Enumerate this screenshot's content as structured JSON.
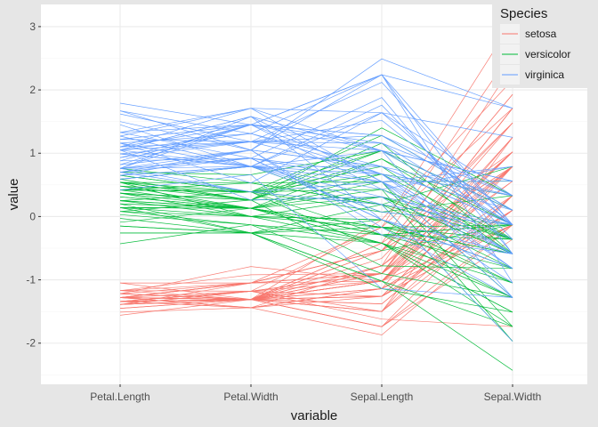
{
  "chart_data": {
    "type": "line",
    "subtype": "parallel-coordinates",
    "title": "",
    "xlabel": "variable",
    "ylabel": "value",
    "categories": [
      "Petal.Length",
      "Petal.Width",
      "Sepal.Length",
      "Sepal.Width"
    ],
    "ylim": [
      -2.65,
      3.35
    ],
    "yticks": [
      -2,
      -1,
      0,
      1,
      2,
      3
    ],
    "grid": true,
    "legend": {
      "title": "Species",
      "position": "top-right"
    },
    "series": [
      {
        "name": "setosa",
        "color": "#F8766D",
        "lines": [
          [
            -1.34,
            -1.31,
            -0.9,
            1.02
          ],
          [
            -1.34,
            -1.31,
            -1.14,
            -0.13
          ],
          [
            -1.39,
            -1.31,
            -1.38,
            0.33
          ],
          [
            -1.28,
            -1.31,
            -1.5,
            0.1
          ],
          [
            -1.34,
            -1.31,
            -1.02,
            1.25
          ],
          [
            -1.17,
            -1.05,
            -0.54,
            1.93
          ],
          [
            -1.34,
            -1.18,
            -1.5,
            0.79
          ],
          [
            -1.28,
            -1.31,
            -1.02,
            0.79
          ],
          [
            -1.34,
            -1.31,
            -1.74,
            -0.36
          ],
          [
            -1.28,
            -1.44,
            -1.14,
            0.1
          ],
          [
            -1.28,
            -1.31,
            -0.54,
            1.48
          ],
          [
            -1.22,
            -1.31,
            -1.26,
            0.79
          ],
          [
            -1.34,
            -1.44,
            -1.26,
            -0.13
          ],
          [
            -1.51,
            -1.44,
            -1.87,
            -0.13
          ],
          [
            -1.45,
            -1.31,
            -0.05,
            2.16
          ],
          [
            -1.28,
            -1.05,
            -0.17,
            3.08
          ],
          [
            -1.39,
            -1.05,
            -0.54,
            1.93
          ],
          [
            -1.34,
            -1.18,
            -0.9,
            1.02
          ],
          [
            -1.17,
            -1.18,
            -0.17,
            1.71
          ],
          [
            -1.28,
            -1.18,
            -0.9,
            1.71
          ],
          [
            -1.17,
            -1.31,
            -0.54,
            0.79
          ],
          [
            -1.28,
            -1.05,
            -0.9,
            1.48
          ],
          [
            -1.56,
            -1.31,
            -1.5,
            1.25
          ],
          [
            -1.17,
            -0.92,
            -0.9,
            0.56
          ],
          [
            -1.05,
            -1.31,
            -1.26,
            0.79
          ],
          [
            -1.22,
            -1.31,
            -1.02,
            -0.13
          ],
          [
            -1.22,
            -1.05,
            -1.02,
            0.79
          ],
          [
            -1.28,
            -1.31,
            -0.78,
            1.02
          ],
          [
            -1.34,
            -1.31,
            -0.78,
            0.79
          ],
          [
            -1.22,
            -1.31,
            -1.38,
            0.33
          ],
          [
            -1.22,
            -1.31,
            -1.26,
            0.1
          ],
          [
            -1.28,
            -1.05,
            -0.54,
            0.79
          ],
          [
            -1.28,
            -1.44,
            -0.78,
            2.39
          ],
          [
            -1.34,
            -1.31,
            -0.42,
            2.62
          ],
          [
            -1.28,
            -1.31,
            -1.14,
            0.1
          ],
          [
            -1.45,
            -1.31,
            -1.02,
            0.33
          ],
          [
            -1.39,
            -1.31,
            -0.42,
            1.02
          ],
          [
            -1.34,
            -1.44,
            -1.14,
            1.25
          ],
          [
            -1.39,
            -1.31,
            -1.74,
            -0.13
          ],
          [
            -1.28,
            -1.31,
            -0.9,
            0.79
          ],
          [
            -1.39,
            -1.18,
            -1.02,
            1.02
          ],
          [
            -1.39,
            -1.18,
            -1.62,
            -1.74
          ],
          [
            -1.39,
            -1.31,
            -1.74,
            0.33
          ],
          [
            -1.22,
            -0.79,
            -1.02,
            1.02
          ],
          [
            -1.05,
            -1.05,
            -0.9,
            1.71
          ],
          [
            -1.34,
            -1.18,
            -1.26,
            -0.13
          ],
          [
            -1.22,
            -1.31,
            -0.9,
            1.71
          ],
          [
            -1.34,
            -1.31,
            -1.5,
            0.33
          ],
          [
            -1.28,
            -1.31,
            -0.66,
            1.48
          ],
          [
            -1.34,
            -1.31,
            -1.02,
            0.56
          ]
        ]
      },
      {
        "name": "versicolor",
        "color": "#00BA38",
        "lines": [
          [
            0.54,
            0.26,
            1.4,
            0.33
          ],
          [
            0.42,
            0.39,
            0.67,
            0.33
          ],
          [
            0.65,
            0.39,
            1.28,
            0.1
          ],
          [
            0.14,
            0.13,
            -0.42,
            -1.74
          ],
          [
            0.48,
            0.39,
            0.79,
            -0.59
          ],
          [
            0.42,
            0.13,
            -0.17,
            -0.59
          ],
          [
            0.54,
            0.53,
            0.55,
            0.56
          ],
          [
            -0.26,
            -0.26,
            -1.14,
            -1.51
          ],
          [
            0.48,
            0.13,
            0.91,
            -0.36
          ],
          [
            0.08,
            0.26,
            -0.78,
            -0.82
          ],
          [
            -0.15,
            -0.26,
            -1.02,
            -2.43
          ],
          [
            0.25,
            0.39,
            0.07,
            -0.13
          ],
          [
            0.14,
            -0.26,
            0.19,
            -1.97
          ],
          [
            0.54,
            0.26,
            0.31,
            -0.36
          ],
          [
            -0.09,
            0.13,
            -0.29,
            -0.36
          ],
          [
            0.37,
            0.26,
            1.04,
            0.1
          ],
          [
            0.42,
            0.39,
            -0.29,
            -0.13
          ],
          [
            0.2,
            -0.26,
            -0.05,
            -0.82
          ],
          [
            0.42,
            0.39,
            0.43,
            -1.97
          ],
          [
            0.08,
            -0.13,
            -0.29,
            -1.28
          ],
          [
            0.59,
            0.79,
            0.07,
            0.33
          ],
          [
            0.14,
            0.13,
            0.31,
            -0.59
          ],
          [
            0.65,
            0.39,
            0.55,
            -1.28
          ],
          [
            0.54,
            0.0,
            0.31,
            -0.59
          ],
          [
            0.31,
            0.13,
            0.67,
            -0.36
          ],
          [
            0.37,
            0.26,
            0.91,
            -0.13
          ],
          [
            0.59,
            0.26,
            1.16,
            -0.59
          ],
          [
            0.7,
            0.66,
            1.04,
            -0.13
          ],
          [
            0.42,
            0.39,
            0.19,
            -0.36
          ],
          [
            -0.15,
            -0.26,
            -0.17,
            -1.05
          ],
          [
            0.03,
            -0.13,
            -0.42,
            -1.51
          ],
          [
            -0.03,
            -0.26,
            -0.42,
            -1.51
          ],
          [
            0.08,
            0.0,
            -0.05,
            -0.82
          ],
          [
            0.76,
            0.53,
            0.19,
            -0.82
          ],
          [
            0.42,
            0.39,
            -0.54,
            -0.13
          ],
          [
            0.42,
            0.53,
            0.19,
            0.79
          ],
          [
            0.54,
            0.39,
            1.04,
            0.1
          ],
          [
            0.37,
            0.13,
            0.55,
            -1.74
          ],
          [
            0.2,
            0.13,
            -0.29,
            -0.13
          ],
          [
            0.14,
            0.13,
            -0.42,
            -1.28
          ],
          [
            0.37,
            0.0,
            -0.42,
            -1.05
          ],
          [
            0.48,
            0.26,
            0.31,
            -0.13
          ],
          [
            0.14,
            0.0,
            -0.05,
            -1.05
          ],
          [
            -0.26,
            -0.26,
            -1.02,
            -1.74
          ],
          [
            0.25,
            0.13,
            -0.29,
            -0.82
          ],
          [
            0.25,
            0.0,
            -0.17,
            -0.13
          ],
          [
            0.25,
            0.13,
            -0.17,
            -0.36
          ],
          [
            0.31,
            0.13,
            0.43,
            -0.36
          ],
          [
            -0.43,
            -0.13,
            -0.9,
            -1.28
          ],
          [
            0.2,
            0.13,
            -0.17,
            -0.59
          ]
        ]
      },
      {
        "name": "virginica",
        "color": "#619CFF",
        "lines": [
          [
            1.27,
            1.71,
            0.55,
            0.56
          ],
          [
            0.76,
            0.92,
            -0.05,
            -0.82
          ],
          [
            1.22,
            1.18,
            1.52,
            -0.13
          ],
          [
            1.05,
            0.79,
            0.55,
            -0.36
          ],
          [
            1.16,
            1.31,
            0.79,
            -0.13
          ],
          [
            1.62,
            1.18,
            2.12,
            -0.13
          ],
          [
            0.42,
            0.66,
            -1.14,
            -1.28
          ],
          [
            1.45,
            0.79,
            1.76,
            -0.36
          ],
          [
            1.16,
            0.79,
            1.04,
            -1.28
          ],
          [
            1.33,
            1.71,
            1.64,
            1.25
          ],
          [
            0.76,
            1.05,
            0.79,
            0.33
          ],
          [
            0.88,
            0.92,
            0.67,
            -0.82
          ],
          [
            0.99,
            1.18,
            1.16,
            -0.13
          ],
          [
            0.7,
            1.05,
            -0.17,
            -1.28
          ],
          [
            0.76,
            1.58,
            -0.05,
            -0.59
          ],
          [
            0.88,
            1.45,
            0.67,
            0.33
          ],
          [
            0.99,
            0.79,
            0.79,
            -0.13
          ],
          [
            1.67,
            1.31,
            2.24,
            1.71
          ],
          [
            1.79,
            1.45,
            2.24,
            -1.05
          ],
          [
            0.7,
            0.39,
            0.19,
            -1.97
          ],
          [
            1.1,
            1.45,
            1.28,
            0.33
          ],
          [
            0.65,
            1.05,
            -0.29,
            -0.59
          ],
          [
            1.67,
            1.05,
            2.24,
            -0.59
          ],
          [
            0.65,
            0.79,
            0.55,
            -0.82
          ],
          [
            1.1,
            1.18,
            1.04,
            0.56
          ],
          [
            1.27,
            0.79,
            1.64,
            0.33
          ],
          [
            0.59,
            0.79,
            0.43,
            -0.59
          ],
          [
            0.65,
            0.79,
            0.31,
            -0.13
          ],
          [
            1.05,
            1.18,
            0.67,
            -0.59
          ],
          [
            1.16,
            0.53,
            1.64,
            -0.13
          ],
          [
            1.33,
            0.92,
            1.88,
            -0.59
          ],
          [
            1.5,
            1.05,
            2.49,
            1.71
          ],
          [
            1.05,
            1.31,
            0.67,
            -0.59
          ],
          [
            0.76,
            0.39,
            0.55,
            -0.59
          ],
          [
            1.05,
            0.26,
            0.31,
            -1.05
          ],
          [
            1.33,
            1.45,
            2.24,
            -0.13
          ],
          [
            1.05,
            1.58,
            0.55,
            0.79
          ],
          [
            0.99,
            0.79,
            0.67,
            0.1
          ],
          [
            0.59,
            0.79,
            0.19,
            -0.13
          ],
          [
            0.93,
            1.18,
            1.28,
            0.1
          ],
          [
            1.05,
            1.58,
            1.04,
            0.1
          ],
          [
            0.76,
            1.45,
            1.28,
            0.1
          ],
          [
            0.76,
            0.92,
            -0.05,
            -0.82
          ],
          [
            1.22,
            1.45,
            1.16,
            0.33
          ],
          [
            1.1,
            1.71,
            1.04,
            0.56
          ],
          [
            0.82,
            1.45,
            1.04,
            -0.13
          ],
          [
            0.7,
            0.92,
            0.55,
            -1.28
          ],
          [
            0.82,
            1.05,
            0.79,
            -0.13
          ],
          [
            0.93,
            1.45,
            0.43,
            0.79
          ],
          [
            0.76,
            0.79,
            0.07,
            -0.13
          ]
        ]
      }
    ]
  }
}
